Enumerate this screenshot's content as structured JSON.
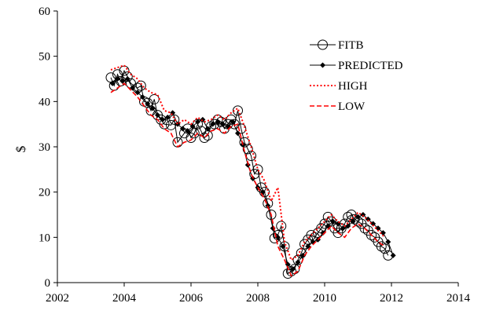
{
  "chart_data": {
    "type": "line",
    "title": "",
    "xlabel": "",
    "ylabel": "$",
    "xlim": [
      2002,
      2014
    ],
    "ylim": [
      0,
      60
    ],
    "xticks": [
      2002,
      2004,
      2006,
      2008,
      2010,
      2012,
      2014
    ],
    "yticks": [
      0,
      10,
      20,
      30,
      40,
      50,
      60
    ],
    "grid": false,
    "legend_position": "top-right",
    "series": [
      {
        "name": "FITB",
        "style": "line-open-circle",
        "color": "#000000",
        "x": [
          2003.6,
          2003.7,
          2003.8,
          2003.9,
          2004.0,
          2004.1,
          2004.2,
          2004.4,
          2004.5,
          2004.6,
          2004.7,
          2004.8,
          2004.9,
          2005.0,
          2005.1,
          2005.2,
          2005.4,
          2005.5,
          2005.6,
          2005.8,
          2005.9,
          2006.0,
          2006.1,
          2006.2,
          2006.3,
          2006.4,
          2006.5,
          2006.6,
          2006.7,
          2006.8,
          2006.9,
          2007.0,
          2007.1,
          2007.2,
          2007.3,
          2007.4,
          2007.5,
          2007.6,
          2007.7,
          2007.8,
          2007.9,
          2008.0,
          2008.1,
          2008.2,
          2008.3,
          2008.4,
          2008.5,
          2008.6,
          2008.7,
          2008.8,
          2008.9,
          2009.0,
          2009.1,
          2009.2,
          2009.3,
          2009.4,
          2009.5,
          2009.6,
          2009.7,
          2009.8,
          2009.9,
          2010.0,
          2010.1,
          2010.2,
          2010.3,
          2010.4,
          2010.5,
          2010.6,
          2010.7,
          2010.8,
          2010.9,
          2011.0,
          2011.1,
          2011.2,
          2011.3,
          2011.4,
          2011.5,
          2011.6,
          2011.7,
          2011.8,
          2011.9
        ],
        "y": [
          45.3,
          43.5,
          46.0,
          44.5,
          46.8,
          45.5,
          44.0,
          43.0,
          43.5,
          40.0,
          39.7,
          38.0,
          40.5,
          37.0,
          36.0,
          35.0,
          34.8,
          36.0,
          31.0,
          33.0,
          34.0,
          32.0,
          33.0,
          35.0,
          33.5,
          32.0,
          32.5,
          34.5,
          35.0,
          36.0,
          35.5,
          34.0,
          35.0,
          36.0,
          35.0,
          38.0,
          34.0,
          31.0,
          29.5,
          28.0,
          24.0,
          25.0,
          21.0,
          20.0,
          17.5,
          15.0,
          9.8,
          10.5,
          12.5,
          8.0,
          2.0,
          2.5,
          3.0,
          5.0,
          6.5,
          8.5,
          9.5,
          10.5,
          10.0,
          11.0,
          12.0,
          13.0,
          14.5,
          13.5,
          12.0,
          11.0,
          12.0,
          13.0,
          14.5,
          15.0,
          14.0,
          13.5,
          13.0,
          12.0,
          11.5,
          10.5,
          10.0,
          9.0,
          8.0,
          7.5,
          6.0
        ]
      },
      {
        "name": "PREDICTED",
        "style": "line-filled-diamond",
        "color": "#000000",
        "x": [
          2003.65,
          2003.8,
          2003.95,
          2004.1,
          2004.25,
          2004.4,
          2004.55,
          2004.7,
          2004.85,
          2005.0,
          2005.15,
          2005.3,
          2005.45,
          2005.6,
          2005.75,
          2005.9,
          2006.05,
          2006.2,
          2006.35,
          2006.5,
          2006.65,
          2006.8,
          2006.95,
          2007.1,
          2007.25,
          2007.4,
          2007.55,
          2007.7,
          2007.85,
          2008.0,
          2008.15,
          2008.3,
          2008.45,
          2008.6,
          2008.75,
          2008.9,
          2009.05,
          2009.2,
          2009.35,
          2009.5,
          2009.65,
          2009.8,
          2009.95,
          2010.1,
          2010.25,
          2010.4,
          2010.55,
          2010.7,
          2010.85,
          2011.0,
          2011.15,
          2011.3,
          2011.45,
          2011.6,
          2011.75,
          2011.9,
          2012.05
        ],
        "y": [
          44.0,
          45.0,
          44.5,
          45.0,
          43.0,
          42.0,
          41.0,
          39.5,
          38.5,
          37.0,
          36.0,
          36.5,
          37.5,
          35.0,
          34.0,
          33.5,
          34.5,
          35.5,
          36.0,
          34.0,
          35.0,
          35.5,
          35.0,
          34.5,
          35.5,
          33.0,
          30.5,
          26.0,
          23.0,
          21.0,
          20.0,
          17.0,
          12.0,
          10.0,
          8.0,
          4.0,
          3.0,
          4.5,
          6.0,
          8.0,
          9.0,
          9.5,
          11.0,
          12.5,
          13.5,
          13.0,
          12.0,
          12.5,
          13.5,
          14.5,
          15.0,
          14.0,
          13.0,
          12.0,
          11.0,
          9.0,
          6.0
        ]
      },
      {
        "name": "HIGH",
        "style": "dotted",
        "color": "#ff0000",
        "x": [
          2003.6,
          2003.8,
          2004.0,
          2004.2,
          2004.4,
          2004.6,
          2004.8,
          2005.0,
          2005.2,
          2005.4,
          2005.6,
          2005.8,
          2006.0,
          2006.2,
          2006.4,
          2006.6,
          2006.8,
          2007.0,
          2007.2,
          2007.4,
          2007.6,
          2007.8,
          2008.0,
          2008.2,
          2008.4,
          2008.6,
          2008.8,
          2009.0,
          2009.2,
          2009.4,
          2009.6,
          2009.8,
          2010.0,
          2010.2,
          2010.4,
          2010.6,
          2010.8,
          2011.0,
          2011.2,
          2011.4,
          2011.6,
          2011.8
        ],
        "y": [
          47.0,
          47.5,
          48.0,
          46.0,
          45.0,
          43.0,
          42.0,
          41.5,
          38.0,
          37.5,
          35.0,
          36.0,
          35.0,
          36.5,
          35.5,
          36.0,
          37.0,
          36.0,
          37.5,
          38.5,
          34.5,
          30.0,
          25.0,
          22.5,
          18.0,
          21.0,
          9.0,
          5.0,
          6.0,
          9.0,
          10.5,
          12.0,
          13.5,
          15.0,
          13.5,
          12.5,
          14.0,
          15.5,
          14.5,
          13.0,
          11.5,
          10.0
        ]
      },
      {
        "name": "LOW",
        "style": "dashed",
        "color": "#ff0000",
        "x": [
          2003.6,
          2003.8,
          2004.0,
          2004.2,
          2004.4,
          2004.6,
          2004.8,
          2005.0,
          2005.2,
          2005.4,
          2005.6,
          2005.8,
          2006.0,
          2006.2,
          2006.4,
          2006.6,
          2006.8,
          2007.0,
          2007.2,
          2007.4,
          2007.6,
          2007.8,
          2008.0,
          2008.2,
          2008.4,
          2008.6,
          2008.8,
          2009.0,
          2009.2,
          2009.4,
          2009.6,
          2009.8,
          2010.0,
          2010.2,
          2010.4,
          2010.6,
          2010.8,
          2011.0,
          2011.2,
          2011.4,
          2011.6,
          2011.8
        ],
        "y": [
          42.0,
          43.0,
          44.0,
          42.5,
          41.0,
          39.0,
          37.0,
          36.0,
          34.0,
          33.0,
          30.0,
          31.0,
          31.5,
          33.0,
          32.0,
          33.5,
          34.0,
          33.0,
          34.5,
          35.0,
          29.0,
          24.0,
          21.0,
          18.5,
          15.0,
          8.0,
          5.0,
          1.5,
          2.5,
          6.0,
          8.0,
          9.5,
          11.0,
          12.5,
          11.0,
          10.0,
          12.0,
          13.0,
          12.0,
          10.5,
          9.0,
          8.0
        ]
      }
    ]
  }
}
